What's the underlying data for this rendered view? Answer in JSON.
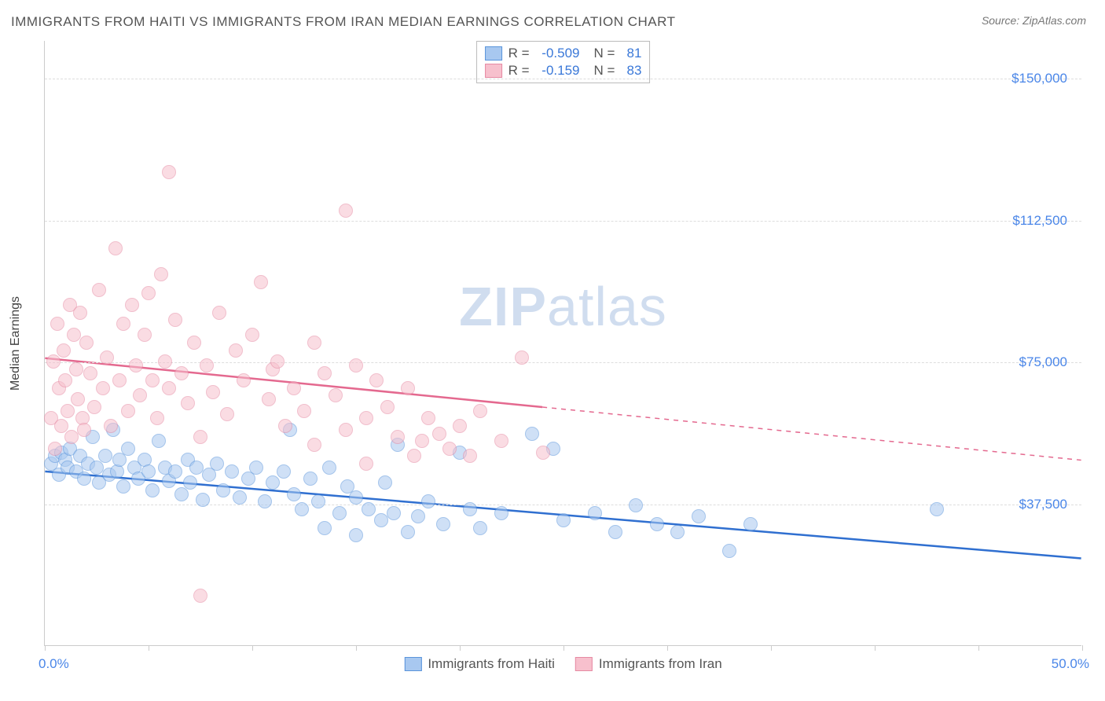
{
  "title": "IMMIGRANTS FROM HAITI VS IMMIGRANTS FROM IRAN MEDIAN EARNINGS CORRELATION CHART",
  "source": "Source: ZipAtlas.com",
  "watermark_a": "ZIP",
  "watermark_b": "atlas",
  "ylabel": "Median Earnings",
  "chart": {
    "type": "scatter",
    "xlim": [
      0,
      50
    ],
    "ylim": [
      0,
      160000
    ],
    "x_tick_positions": [
      0,
      5,
      10,
      15,
      20,
      25,
      30,
      35,
      40,
      45,
      50
    ],
    "x_min_label": "0.0%",
    "x_max_label": "50.0%",
    "y_gridlines": [
      37500,
      75000,
      112500,
      150000
    ],
    "y_tick_labels": [
      "$37,500",
      "$75,000",
      "$112,500",
      "$150,000"
    ],
    "background_color": "#ffffff",
    "grid_color": "#dddddd",
    "marker_radius": 9,
    "marker_opacity": 0.55,
    "series": [
      {
        "key": "haiti",
        "label": "Immigrants from Haiti",
        "fill": "#a8c8f0",
        "stroke": "#5a94db",
        "line_color": "#2f6fd0",
        "r": -0.509,
        "n": 81,
        "trend": {
          "y_at_xmin": 46000,
          "y_at_xmax": 23000,
          "solid_until_x": 50
        },
        "points": [
          [
            0.3,
            48000
          ],
          [
            0.5,
            50000
          ],
          [
            0.7,
            45000
          ],
          [
            0.8,
            51000
          ],
          [
            1.0,
            49000
          ],
          [
            1.1,
            47000
          ],
          [
            1.2,
            52000
          ],
          [
            1.5,
            46000
          ],
          [
            1.7,
            50000
          ],
          [
            1.9,
            44000
          ],
          [
            2.1,
            48000
          ],
          [
            2.3,
            55000
          ],
          [
            2.5,
            47000
          ],
          [
            2.6,
            43000
          ],
          [
            2.9,
            50000
          ],
          [
            3.1,
            45000
          ],
          [
            3.3,
            57000
          ],
          [
            3.5,
            46000
          ],
          [
            3.6,
            49000
          ],
          [
            3.8,
            42000
          ],
          [
            4.0,
            52000
          ],
          [
            4.3,
            47000
          ],
          [
            4.5,
            44000
          ],
          [
            4.8,
            49000
          ],
          [
            5.0,
            46000
          ],
          [
            5.2,
            41000
          ],
          [
            5.5,
            54000
          ],
          [
            5.8,
            47000
          ],
          [
            6.0,
            43500
          ],
          [
            6.3,
            46000
          ],
          [
            6.6,
            40000
          ],
          [
            6.9,
            49000
          ],
          [
            7.0,
            43000
          ],
          [
            7.3,
            47000
          ],
          [
            7.6,
            38500
          ],
          [
            7.9,
            45000
          ],
          [
            8.3,
            48000
          ],
          [
            8.6,
            41000
          ],
          [
            9.0,
            46000
          ],
          [
            9.4,
            39000
          ],
          [
            9.8,
            44000
          ],
          [
            10.2,
            47000
          ],
          [
            10.6,
            38000
          ],
          [
            11.0,
            43000
          ],
          [
            11.5,
            46000
          ],
          [
            11.8,
            57000
          ],
          [
            12.0,
            40000
          ],
          [
            12.4,
            36000
          ],
          [
            12.8,
            44000
          ],
          [
            13.2,
            38000
          ],
          [
            13.5,
            31000
          ],
          [
            13.7,
            47000
          ],
          [
            14.2,
            35000
          ],
          [
            14.6,
            42000
          ],
          [
            15.0,
            29000
          ],
          [
            15.0,
            39000
          ],
          [
            15.6,
            36000
          ],
          [
            16.2,
            33000
          ],
          [
            16.4,
            43000
          ],
          [
            16.8,
            35000
          ],
          [
            17.0,
            53000
          ],
          [
            17.5,
            30000
          ],
          [
            18.0,
            34000
          ],
          [
            18.5,
            38000
          ],
          [
            19.2,
            32000
          ],
          [
            20.0,
            51000
          ],
          [
            20.5,
            36000
          ],
          [
            21.0,
            31000
          ],
          [
            22.0,
            35000
          ],
          [
            23.5,
            56000
          ],
          [
            24.5,
            52000
          ],
          [
            25.0,
            33000
          ],
          [
            26.5,
            35000
          ],
          [
            27.5,
            30000
          ],
          [
            28.5,
            37000
          ],
          [
            29.5,
            32000
          ],
          [
            30.5,
            30000
          ],
          [
            31.5,
            34000
          ],
          [
            33.0,
            25000
          ],
          [
            34.0,
            32000
          ],
          [
            43.0,
            36000
          ]
        ]
      },
      {
        "key": "iran",
        "label": "Immigrants from Iran",
        "fill": "#f7c0cd",
        "stroke": "#e68aa3",
        "line_color": "#e4698f",
        "r": -0.159,
        "n": 83,
        "trend": {
          "y_at_xmin": 76000,
          "y_at_xmax": 49000,
          "solid_until_x": 24
        },
        "points": [
          [
            0.3,
            60000
          ],
          [
            0.4,
            75000
          ],
          [
            0.5,
            52000
          ],
          [
            0.6,
            85000
          ],
          [
            0.7,
            68000
          ],
          [
            0.8,
            58000
          ],
          [
            0.9,
            78000
          ],
          [
            1.0,
            70000
          ],
          [
            1.1,
            62000
          ],
          [
            1.2,
            90000
          ],
          [
            1.3,
            55000
          ],
          [
            1.4,
            82000
          ],
          [
            1.5,
            73000
          ],
          [
            1.6,
            65000
          ],
          [
            1.7,
            88000
          ],
          [
            1.8,
            60000
          ],
          [
            1.9,
            57000
          ],
          [
            2.0,
            80000
          ],
          [
            2.2,
            72000
          ],
          [
            2.4,
            63000
          ],
          [
            2.6,
            94000
          ],
          [
            2.8,
            68000
          ],
          [
            3.0,
            76000
          ],
          [
            3.2,
            58000
          ],
          [
            3.4,
            105000
          ],
          [
            3.6,
            70000
          ],
          [
            3.8,
            85000
          ],
          [
            4.0,
            62000
          ],
          [
            4.2,
            90000
          ],
          [
            4.4,
            74000
          ],
          [
            4.6,
            66000
          ],
          [
            4.8,
            82000
          ],
          [
            5.0,
            93000
          ],
          [
            5.2,
            70000
          ],
          [
            5.4,
            60000
          ],
          [
            5.6,
            98000
          ],
          [
            5.8,
            75000
          ],
          [
            6.0,
            125000
          ],
          [
            6.0,
            68000
          ],
          [
            6.3,
            86000
          ],
          [
            6.6,
            72000
          ],
          [
            6.9,
            64000
          ],
          [
            7.2,
            80000
          ],
          [
            7.5,
            55000
          ],
          [
            7.5,
            13000
          ],
          [
            7.8,
            74000
          ],
          [
            8.1,
            67000
          ],
          [
            8.4,
            88000
          ],
          [
            8.8,
            61000
          ],
          [
            9.2,
            78000
          ],
          [
            9.6,
            70000
          ],
          [
            10.0,
            82000
          ],
          [
            10.4,
            96000
          ],
          [
            10.8,
            65000
          ],
          [
            11.0,
            73000
          ],
          [
            11.2,
            75000
          ],
          [
            11.6,
            58000
          ],
          [
            12.0,
            68000
          ],
          [
            12.5,
            62000
          ],
          [
            13.0,
            80000
          ],
          [
            13.0,
            53000
          ],
          [
            13.5,
            72000
          ],
          [
            14.0,
            66000
          ],
          [
            14.5,
            57000
          ],
          [
            14.5,
            115000
          ],
          [
            15.0,
            74000
          ],
          [
            15.5,
            60000
          ],
          [
            15.5,
            48000
          ],
          [
            16.0,
            70000
          ],
          [
            16.5,
            63000
          ],
          [
            17.0,
            55000
          ],
          [
            17.5,
            68000
          ],
          [
            17.8,
            50000
          ],
          [
            18.2,
            54000
          ],
          [
            18.5,
            60000
          ],
          [
            19.0,
            56000
          ],
          [
            19.5,
            52000
          ],
          [
            20.0,
            58000
          ],
          [
            20.5,
            50000
          ],
          [
            21.0,
            62000
          ],
          [
            22.0,
            54000
          ],
          [
            23.0,
            76000
          ],
          [
            24.0,
            51000
          ]
        ]
      }
    ]
  },
  "stats_labels": {
    "r": "R",
    "eq": "=",
    "n": "N"
  }
}
